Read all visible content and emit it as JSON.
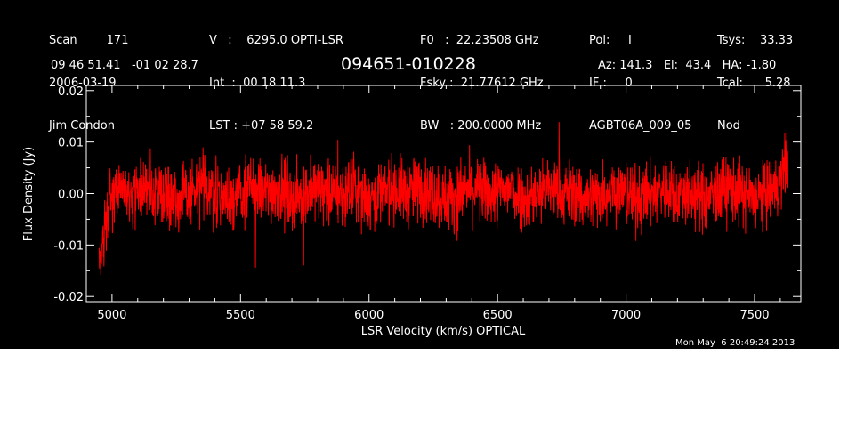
{
  "header": {
    "col1": [
      "Scan        171",
      "2006-03-19",
      "Jim Condon"
    ],
    "col2": [
      "V   :    6295.0 OPTI-LSR",
      "Int  :  00 18 11.3",
      "LST : +07 58 59.2"
    ],
    "col3": [
      "F0   :  22.23508 GHz",
      "Fsky :  21.77612 GHz",
      "BW   : 200.0000 MHz"
    ],
    "col4": [
      "Pol:     I",
      "IF :     0",
      "AGBT06A_009_05"
    ],
    "col5": [
      "Tsys:    33.33",
      "Tcal:      5.28",
      "Nod"
    ],
    "coords": "09 46 51.41   -01 02 28.7",
    "source": "094651-010228",
    "pointing": "Az: 141.3   El:  43.4   HA: -1.80"
  },
  "timestamp": "Mon May  6 20:49:24 2013",
  "colors": {
    "background": "#000000",
    "axes": "#ffffff",
    "trace": "#ff0000"
  },
  "chart_data": {
    "type": "line",
    "xlabel": "LSR Velocity (km/s) OPTICAL",
    "ylabel": "Flux Density (Jy)",
    "xlim": [
      4900,
      7680
    ],
    "ylim": [
      -0.021,
      0.021
    ],
    "xticks": [
      5000,
      5500,
      6000,
      6500,
      7000,
      7500
    ],
    "xtick_labels": [
      "5000",
      "5500",
      "6000",
      "6500",
      "7000",
      "7500"
    ],
    "yticks": [
      -0.02,
      -0.01,
      0.0,
      0.01,
      0.02
    ],
    "ytick_labels": [
      "-0.02",
      "-0.01",
      "0.00",
      "0.01",
      "0.02"
    ],
    "grid": false,
    "series": [
      {
        "color": "#ff0000",
        "x": [
          4950,
          4960,
          4970,
          4980,
          4990,
          5000,
          5020,
          5040,
          5060,
          5080,
          5100,
          5150,
          5200,
          5250,
          5300,
          5350,
          5400,
          5450,
          5500,
          5550,
          5600,
          5650,
          5700,
          5750,
          5800,
          5850,
          5900,
          5950,
          6000,
          6050,
          6100,
          6150,
          6200,
          6250,
          6300,
          6350,
          6400,
          6450,
          6500,
          6550,
          6600,
          6650,
          6700,
          6750,
          6800,
          6850,
          6900,
          6950,
          7000,
          7050,
          7100,
          7150,
          7200,
          7250,
          7300,
          7350,
          7400,
          7450,
          7500,
          7550,
          7580,
          7600,
          7610,
          7620,
          7630
        ],
        "y": [
          -0.014,
          -0.012,
          -0.006,
          -0.003,
          -0.002,
          -0.001,
          0.0,
          0.001,
          0.0,
          -0.001,
          0.001,
          0.0,
          0.001,
          -0.001,
          0.0,
          0.001,
          0.0,
          -0.001,
          0.0,
          0.001,
          0.0,
          0.001,
          -0.001,
          0.0,
          0.001,
          0.0,
          0.0,
          0.001,
          -0.001,
          0.0,
          0.001,
          0.0,
          0.001,
          0.0,
          -0.001,
          0.0,
          0.001,
          0.0,
          0.0,
          0.001,
          -0.001,
          0.0,
          0.001,
          0.0,
          0.0,
          -0.001,
          0.0,
          0.001,
          0.0,
          -0.001,
          0.0,
          0.001,
          0.0,
          0.0,
          -0.001,
          0.0,
          0.001,
          0.0,
          -0.001,
          0.0,
          0.001,
          0.002,
          0.004,
          0.006,
          0.007
        ]
      }
    ]
  }
}
